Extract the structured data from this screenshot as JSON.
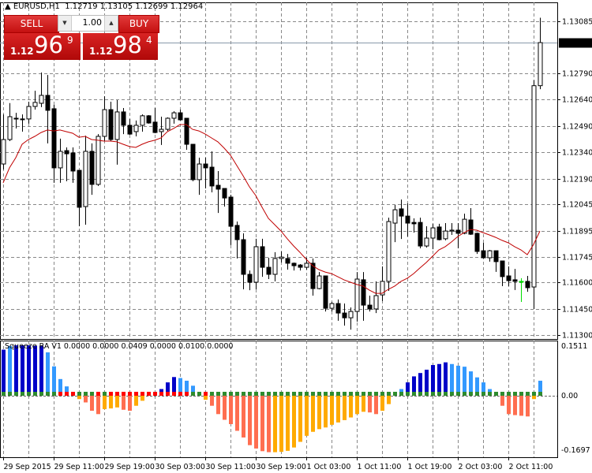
{
  "header": {
    "symbol": "EURUSD,H1",
    "ohlc": "1.12719 1.13105 1.12699 1.12964"
  },
  "trade_panel": {
    "sell_label": "SELL",
    "buy_label": "BUY",
    "lot": "1.00",
    "sell_price": {
      "prefix": "1.12",
      "big": "96",
      "sup": "9"
    },
    "buy_price": {
      "prefix": "1.12",
      "big": "98",
      "sup": "4"
    },
    "down_icon": "triangle-down",
    "up_icon": "triangle-up"
  },
  "indicator": {
    "label": "Squeeze RA V1 0.0000 0.0000 0.0409 0.0000 0.0100 0.0000"
  },
  "colors": {
    "bull_body": "#ffffff",
    "bear_body": "#000000",
    "ma": "#c00000",
    "highlight_candle": "#00dd00",
    "hist": [
      "#0000c8",
      "#3399ff",
      "#ff6e50",
      "#ffaa00"
    ],
    "dot_green": "#2e8b2e",
    "dot_red": "#ff0000",
    "current_price_bg": "#000000"
  },
  "chart_data": [
    {
      "type": "candlestick",
      "symbol": "EURUSD",
      "timeframe": "H1",
      "ylim": [
        1.113,
        1.13105
      ],
      "y_ticks": [
        "1.13085",
        "1.12790",
        "1.12640",
        "1.12490",
        "1.12340",
        "1.12190",
        "1.12045",
        "1.11895",
        "1.11745",
        "1.11600",
        "1.11450",
        "1.11300"
      ],
      "current_price": "1.12964",
      "x_ticks": [
        "29 Sep 2015",
        "29 Sep 11:00",
        "29 Sep 19:00",
        "30 Sep 03:00",
        "30 Sep 11:00",
        "30 Sep 19:00",
        "1 Oct 03:00",
        "1 Oct 11:00",
        "1 Oct 19:00",
        "2 Oct 03:00",
        "2 Oct 11:00"
      ],
      "x_tick_every_bars": 8,
      "grid": true,
      "highlight_index": 82,
      "ohlc": [
        [
          1.12274,
          1.12556,
          1.12243,
          1.12413
        ],
        [
          1.12413,
          1.1262,
          1.12404,
          1.12543
        ],
        [
          1.12534,
          1.12565,
          1.12476,
          1.1253
        ],
        [
          1.1253,
          1.12556,
          1.12458,
          1.1253
        ],
        [
          1.1253,
          1.12628,
          1.12503,
          1.12601
        ],
        [
          1.12601,
          1.1269,
          1.12583,
          1.12624
        ],
        [
          1.12619,
          1.12794,
          1.12597,
          1.12664
        ],
        [
          1.12664,
          1.1278,
          1.12391,
          1.12579
        ],
        [
          1.12588,
          1.1261,
          1.12167,
          1.12252
        ],
        [
          1.12252,
          1.12418,
          1.12167,
          1.12346
        ],
        [
          1.1235,
          1.12368,
          1.12176,
          1.12332
        ],
        [
          1.12337,
          1.12368,
          1.12167,
          1.12234
        ],
        [
          1.12238,
          1.12238,
          1.1192,
          1.12028
        ],
        [
          1.12032,
          1.12435,
          1.11929,
          1.12346
        ],
        [
          1.12346,
          1.12391,
          1.12099,
          1.12158
        ],
        [
          1.12158,
          1.12444,
          1.12149,
          1.12431
        ],
        [
          1.12431,
          1.12659,
          1.12404,
          1.12583
        ],
        [
          1.12583,
          1.12628,
          1.12404,
          1.12413
        ],
        [
          1.12413,
          1.12637,
          1.1227,
          1.1257
        ],
        [
          1.1257,
          1.12592,
          1.12444,
          1.12494
        ],
        [
          1.12494,
          1.1253,
          1.1244,
          1.12444
        ],
        [
          1.12458,
          1.12521,
          1.12431,
          1.12494
        ],
        [
          1.12494,
          1.12556,
          1.12458,
          1.12548
        ],
        [
          1.12548,
          1.12552,
          1.12503,
          1.12507
        ],
        [
          1.12512,
          1.12592,
          1.12449,
          1.12453
        ],
        [
          1.12458,
          1.12543,
          1.12382,
          1.12471
        ],
        [
          1.12471,
          1.12539,
          1.12462,
          1.12534
        ],
        [
          1.12534,
          1.12574,
          1.12503,
          1.12565
        ],
        [
          1.12565,
          1.12583,
          1.12521,
          1.12525
        ],
        [
          1.12534,
          1.12534,
          1.12355,
          1.12386
        ],
        [
          1.12386,
          1.12386,
          1.12176,
          1.12185
        ],
        [
          1.12185,
          1.1231,
          1.12099,
          1.12274
        ],
        [
          1.12274,
          1.1231,
          1.12135,
          1.12252
        ],
        [
          1.12256,
          1.12346,
          1.12113,
          1.12149
        ],
        [
          1.12153,
          1.12234,
          1.11996,
          1.12131
        ],
        [
          1.12135,
          1.12135,
          1.12032,
          1.12081
        ],
        [
          1.12086,
          1.12099,
          1.11813,
          1.1192
        ],
        [
          1.11925,
          1.11947,
          1.11737,
          1.11844
        ],
        [
          1.11844,
          1.1188,
          1.11562,
          1.11647
        ],
        [
          1.11647,
          1.11669,
          1.11557,
          1.11602
        ],
        [
          1.11602,
          1.11849,
          1.11562,
          1.11804
        ],
        [
          1.11804,
          1.11849,
          1.11633,
          1.11687
        ],
        [
          1.11687,
          1.11741,
          1.1162,
          1.11647
        ],
        [
          1.11647,
          1.11773,
          1.11607,
          1.11737
        ],
        [
          1.11737,
          1.11777,
          1.11714,
          1.11745
        ],
        [
          1.11737,
          1.11763,
          1.11674,
          1.1171
        ],
        [
          1.1171,
          1.11714,
          1.11669,
          1.11696
        ],
        [
          1.117,
          1.11705,
          1.11669,
          1.11687
        ],
        [
          1.11687,
          1.11741,
          1.11674,
          1.1171
        ],
        [
          1.1171,
          1.11737,
          1.11526,
          1.11566
        ],
        [
          1.11566,
          1.1166,
          1.11562,
          1.11638
        ],
        [
          1.11638,
          1.11638,
          1.11436,
          1.11454
        ],
        [
          1.11454,
          1.1149,
          1.11436,
          1.11481
        ],
        [
          1.11481,
          1.11504,
          1.11383,
          1.11427
        ],
        [
          1.11427,
          1.11481,
          1.11356,
          1.114
        ],
        [
          1.114,
          1.11459,
          1.11333,
          1.11436
        ],
        [
          1.11436,
          1.1166,
          1.11378,
          1.1162
        ],
        [
          1.11616,
          1.1166,
          1.11383,
          1.11472
        ],
        [
          1.11472,
          1.11526,
          1.11436,
          1.1145
        ],
        [
          1.1145,
          1.11607,
          1.11427,
          1.11526
        ],
        [
          1.1153,
          1.11692,
          1.11495,
          1.11607
        ],
        [
          1.11607,
          1.11969,
          1.11553,
          1.11947
        ],
        [
          1.11938,
          1.12041,
          1.1183,
          1.12014
        ],
        [
          1.12019,
          1.12072,
          1.11848,
          1.11978
        ],
        [
          1.11978,
          1.1205,
          1.11862,
          1.11938
        ],
        [
          1.11942,
          1.11965,
          1.11884,
          1.11934
        ],
        [
          1.11942,
          1.11969,
          1.11795,
          1.11808
        ],
        [
          1.11808,
          1.1192,
          1.11799,
          1.11853
        ],
        [
          1.11853,
          1.11934,
          1.1179,
          1.11911
        ],
        [
          1.11916,
          1.11934,
          1.1184,
          1.11844
        ],
        [
          1.11849,
          1.11938,
          1.1184,
          1.11893
        ],
        [
          1.11893,
          1.11938,
          1.11871,
          1.11898
        ],
        [
          1.11898,
          1.11938,
          1.11795,
          1.1188
        ],
        [
          1.1188,
          1.11992,
          1.11875,
          1.1196
        ],
        [
          1.11956,
          1.12023,
          1.11871,
          1.11875
        ],
        [
          1.1188,
          1.11884,
          1.11763,
          1.11777
        ],
        [
          1.11781,
          1.11826,
          1.11737,
          1.11741
        ],
        [
          1.11741,
          1.11786,
          1.11719,
          1.11781
        ],
        [
          1.11781,
          1.11781,
          1.11661,
          1.11719
        ],
        [
          1.11723,
          1.11723,
          1.1158,
          1.11634
        ],
        [
          1.11638,
          1.11692,
          1.1158,
          1.11611
        ],
        [
          1.11616,
          1.11678,
          1.11558,
          1.11607
        ],
        [
          1.11607,
          1.11625,
          1.1149,
          1.11607
        ],
        [
          1.11607,
          1.11638,
          1.11548,
          1.11571
        ],
        [
          1.11575,
          1.1275,
          1.1145,
          1.12719
        ],
        [
          1.12719,
          1.13105,
          1.12699,
          1.12964
        ]
      ],
      "ma": [
        1.12167,
        1.12252,
        1.1231,
        1.12386,
        1.12413,
        1.12431,
        1.12453,
        1.12467,
        1.12462,
        1.12467,
        1.12458,
        1.12449,
        1.12426,
        1.12431,
        1.12413,
        1.12409,
        1.12404,
        1.12404,
        1.124,
        1.12386,
        1.12373,
        1.12368,
        1.12386,
        1.124,
        1.12409,
        1.12422,
        1.12458,
        1.12476,
        1.12498,
        1.12498,
        1.12471,
        1.12462,
        1.12444,
        1.12422,
        1.124,
        1.12364,
        1.12324,
        1.12265,
        1.12207,
        1.12144,
        1.12095,
        1.12028,
        1.11965,
        1.11929,
        1.11893,
        1.11849,
        1.11808,
        1.11772,
        1.11732,
        1.11696,
        1.11674,
        1.1166,
        1.11651,
        1.11633,
        1.11615,
        1.11602,
        1.11589,
        1.1158,
        1.11557,
        1.11539,
        1.11539,
        1.11562,
        1.1158,
        1.11607,
        1.11625,
        1.11651,
        1.11683,
        1.11714,
        1.1175,
        1.11786,
        1.11804,
        1.11831,
        1.11862,
        1.11884,
        1.11902,
        1.11898,
        1.11884,
        1.11871,
        1.11857,
        1.1184,
        1.11826,
        1.11804,
        1.11786,
        1.11759,
        1.11817,
        1.11893
      ]
    },
    {
      "type": "bar",
      "name": "Squeeze RA V1",
      "ylim": [
        -0.1697,
        0.1511
      ],
      "y_ticks": [
        "0.1511",
        "0.00",
        "-0.1697"
      ],
      "values": [
        0.138,
        0.149,
        0.151,
        0.151,
        0.151,
        0.15,
        0.15,
        0.13,
        0.088,
        0.05,
        0.028,
        0.01,
        -0.01,
        -0.02,
        -0.045,
        -0.055,
        -0.04,
        -0.038,
        -0.035,
        -0.042,
        -0.045,
        -0.03,
        -0.015,
        0,
        0,
        0.02,
        0.04,
        0.056,
        0.053,
        0.045,
        0.03,
        0.01,
        -0.012,
        -0.03,
        -0.055,
        -0.072,
        -0.085,
        -0.105,
        -0.125,
        -0.148,
        -0.158,
        -0.166,
        -0.169,
        -0.169,
        -0.168,
        -0.165,
        -0.155,
        -0.138,
        -0.12,
        -0.108,
        -0.1,
        -0.095,
        -0.087,
        -0.08,
        -0.073,
        -0.065,
        -0.055,
        -0.048,
        -0.05,
        -0.055,
        -0.045,
        -0.025,
        0,
        0.02,
        0.04,
        0.058,
        0.068,
        0.078,
        0.092,
        0.095,
        0.1,
        0.095,
        0.09,
        0.087,
        0.073,
        0.055,
        0.04,
        0.02,
        0,
        -0.03,
        -0.055,
        -0.058,
        -0.06,
        -0.062,
        -0.01,
        0.045
      ],
      "color_class": [
        0,
        1,
        0,
        0,
        0,
        0,
        0,
        1,
        1,
        1,
        1,
        1,
        3,
        2,
        2,
        2,
        3,
        3,
        3,
        2,
        2,
        3,
        3,
        3,
        3,
        0,
        0,
        0,
        1,
        1,
        1,
        1,
        3,
        2,
        2,
        2,
        2,
        2,
        2,
        2,
        2,
        2,
        2,
        3,
        3,
        3,
        3,
        3,
        3,
        3,
        3,
        3,
        3,
        3,
        3,
        3,
        3,
        3,
        2,
        2,
        3,
        3,
        3,
        1,
        0,
        0,
        0,
        0,
        0,
        0,
        0,
        1,
        1,
        1,
        1,
        1,
        1,
        1,
        2,
        2,
        2,
        2,
        2,
        2,
        3,
        1
      ],
      "red_dot_indices": [
        9,
        10,
        11,
        15,
        17,
        18,
        19,
        20,
        21,
        22,
        23,
        24,
        25,
        26,
        27,
        28,
        29,
        32
      ]
    }
  ]
}
